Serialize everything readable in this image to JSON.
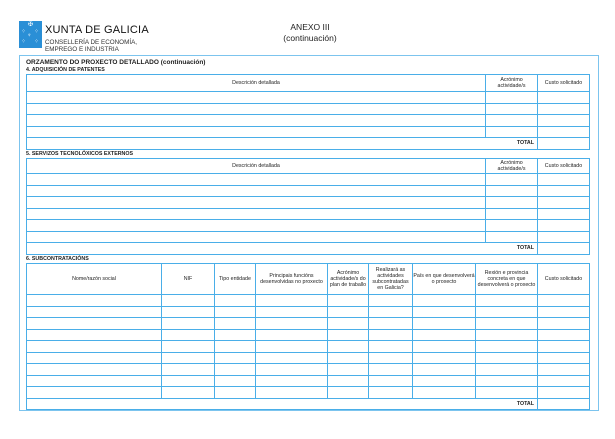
{
  "header": {
    "brand": "XUNTA DE GALICIA",
    "department_line1": "CONSELLERÍA DE ECONOMÍA,",
    "department_line2": "EMPREGO E INDUSTRIA",
    "annex": "ANEXO III",
    "annex_sub": "(continuación)",
    "logo_color": "#2a8fd6"
  },
  "form_title": "ORZAMENTO DO PROXECTO DETALLADO (continuación)",
  "section4": {
    "title": "4. ADQUISICIÓN DE PATENTES",
    "columns": [
      "Descrición detallada",
      "Acrónimo actividade/s",
      "Custo solicitado"
    ],
    "total_label": "TOTAL"
  },
  "section5": {
    "title": "5. SERVIZOS TECNOLÓXICOS EXTERNOS",
    "columns": [
      "Descrición detallada",
      "Acrónimo actividade/s",
      "Custo solicitado"
    ],
    "total_label": "TOTAL"
  },
  "section6": {
    "title": "6. SUBCONTRATACIÓNS",
    "columns": [
      "Nome/razón social",
      "NIF",
      "Tipo entidade",
      "Principais funcións desenvolvidas no proxecto",
      "Acrónimo actividade/s do plan de traballo",
      "Realizará as actividades subcontratadas en Galicia?",
      "País en que desenvolverá o proxecto",
      "Rexión e provincia concreta en que desenvolverá o proxecto",
      "Custo solicitado"
    ],
    "total_label": "TOTAL"
  },
  "colors": {
    "grid": "#4aaee8",
    "frame": "#7cc4ee"
  }
}
